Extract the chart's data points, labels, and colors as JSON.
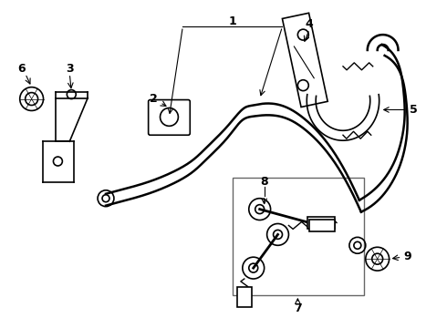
{
  "background_color": "#ffffff",
  "line_color": "#000000",
  "figsize": [
    4.9,
    3.6
  ],
  "dpi": 100,
  "bar_lw": 1.8,
  "thin_lw": 1.0
}
